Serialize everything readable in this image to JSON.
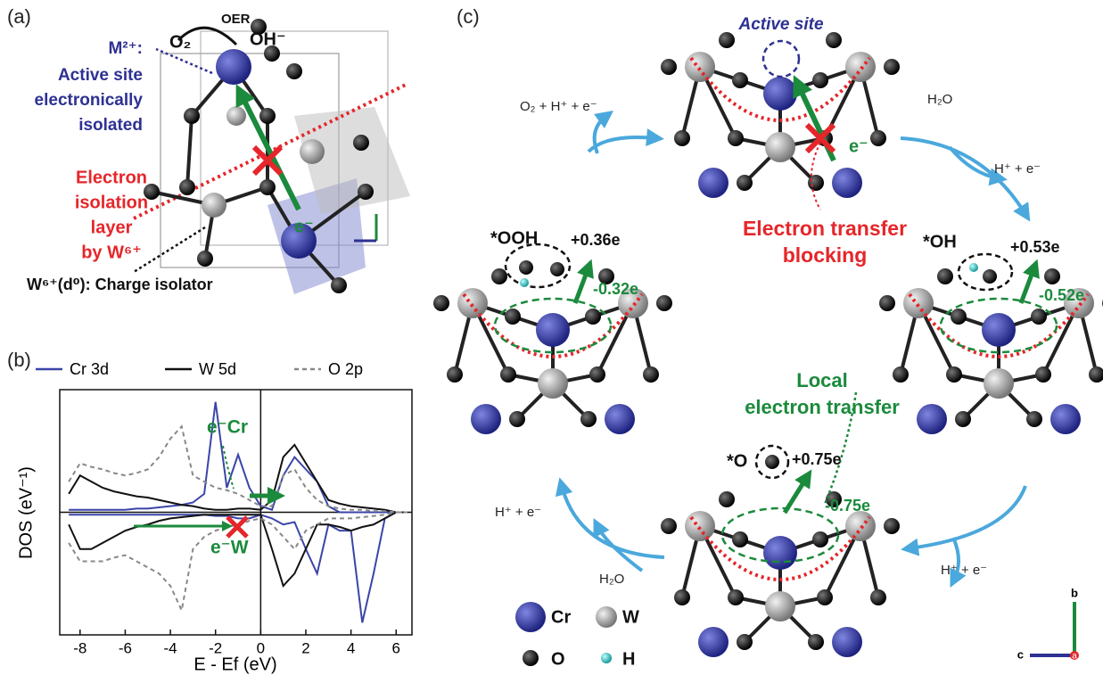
{
  "panel_labels": [
    "(a)",
    "(b)",
    "(c)"
  ],
  "panel_a": {
    "o2": "O₂",
    "oer": "OER",
    "oh": "OH⁻",
    "m2": "M²⁺:",
    "active_lines": [
      "Active site",
      "electronically",
      "isolated"
    ],
    "isolation_lines": [
      "Electron",
      "isolation",
      "layer",
      "by W⁶⁺"
    ],
    "electron": "e⁻",
    "charge_isolator": "W⁶⁺(d⁰): Charge isolator"
  },
  "panel_c": {
    "active_site": "Active site",
    "electron": "e⁻",
    "blocking_lines": [
      "Electron transfer",
      "blocking"
    ],
    "o2_release": "O₂ + H⁺ + e⁻",
    "h2o_top": "H₂O",
    "h_right_top": "H⁺ + e⁻",
    "ooh": "*OOH",
    "ooh_charge": "+0.36e",
    "ooh_transfer": "-0.32e",
    "oh": "*OH",
    "oh_charge": "+0.53e",
    "oh_transfer": "-0.52e",
    "local_lines": [
      "Local",
      "electron transfer"
    ],
    "o": "*O",
    "o_charge": "+0.75e",
    "o_transfer": "-0.75e",
    "h_left": "H⁺ + e⁻",
    "h2o_bottom": "H₂O",
    "h_right_bottom": "H⁺ + e⁻",
    "legend": [
      "Cr",
      "W",
      "O",
      "H"
    ],
    "axes": [
      "b",
      "c",
      "a"
    ]
  },
  "chart_data": {
    "type": "line",
    "y_label": "DOS (eV⁻¹)",
    "x_label": "E - Ef (eV)",
    "annotations": [
      "e⁻Cr",
      "e⁻W"
    ],
    "x": [
      -8.5,
      -8,
      -7.5,
      -7,
      -6.5,
      -6,
      -5.5,
      -5,
      -4.5,
      -4,
      -3.5,
      -3,
      -2.5,
      -2,
      -1.5,
      -1,
      -0.5,
      0,
      0.5,
      1,
      1.5,
      2,
      2.5,
      3,
      3.5,
      4,
      4.5,
      5,
      5.5,
      6,
      6.5
    ],
    "xlim": [
      -8.9,
      6.7
    ],
    "ylim": [
      -1,
      1
    ],
    "xticks": [
      -8,
      -6,
      -4,
      -2,
      0,
      2,
      4,
      6
    ],
    "series": [
      {
        "name": "Cr 3d",
        "color": "#3a45a8",
        "dashed": false,
        "values": [
          0.02,
          0.02,
          0.02,
          0.02,
          0.02,
          0.02,
          0.03,
          0.03,
          0.04,
          0.05,
          0.06,
          0.08,
          0.15,
          0.9,
          0.2,
          0.47,
          0.2,
          0.05,
          0.02,
          0.3,
          0.45,
          0.35,
          0.25,
          0.05,
          0,
          0,
          0,
          0,
          0,
          0,
          0
        ],
        "values_down": [
          -0.02,
          -0.02,
          -0.02,
          -0.02,
          -0.02,
          -0.02,
          -0.02,
          -0.02,
          -0.02,
          -0.02,
          -0.02,
          -0.02,
          -0.02,
          -0.03,
          -0.03,
          -0.05,
          -0.05,
          -0.02,
          -0.05,
          -0.1,
          -0.08,
          -0.3,
          -0.5,
          -0.1,
          -0.15,
          -0.15,
          -0.9,
          -0.5,
          -0.05,
          0,
          0
        ]
      },
      {
        "name": "W 5d",
        "color": "#111111",
        "dashed": false,
        "values": [
          0.15,
          0.3,
          0.25,
          0.2,
          0.17,
          0.15,
          0.13,
          0.12,
          0.1,
          0.08,
          0.06,
          0.05,
          0.03,
          0.02,
          0.02,
          0.03,
          0.03,
          0.02,
          0.1,
          0.45,
          0.55,
          0.4,
          0.25,
          0.1,
          0.07,
          0.05,
          0.04,
          0.03,
          0.02,
          0,
          0
        ],
        "values_down": [
          -0.1,
          -0.3,
          -0.3,
          -0.25,
          -0.2,
          -0.15,
          -0.12,
          -0.1,
          -0.07,
          -0.05,
          -0.04,
          -0.03,
          -0.02,
          -0.02,
          -0.02,
          -0.02,
          -0.02,
          -0.02,
          -0.3,
          -0.6,
          -0.5,
          -0.3,
          -0.1,
          -0.1,
          -0.12,
          -0.15,
          -0.12,
          -0.1,
          -0.05,
          0,
          0
        ]
      },
      {
        "name": "O 2p",
        "color": "#888888",
        "dashed": true,
        "values": [
          0.25,
          0.4,
          0.37,
          0.35,
          0.32,
          0.3,
          0.32,
          0.35,
          0.45,
          0.6,
          0.7,
          0.3,
          0.25,
          0.2,
          0.18,
          0.15,
          0.1,
          0.05,
          0.05,
          0.3,
          0.35,
          0.2,
          0.1,
          0.05,
          0.03,
          0.02,
          0.02,
          0.01,
          0.01,
          0,
          0
        ],
        "values_down": [
          -0.25,
          -0.4,
          -0.4,
          -0.4,
          -0.37,
          -0.35,
          -0.4,
          -0.45,
          -0.5,
          -0.6,
          -0.8,
          -0.3,
          -0.2,
          -0.15,
          -0.12,
          -0.1,
          -0.07,
          -0.05,
          -0.1,
          -0.2,
          -0.3,
          -0.15,
          -0.1,
          -0.05,
          -0.05,
          -0.05,
          -0.04,
          -0.03,
          -0.02,
          0,
          0
        ]
      }
    ]
  }
}
